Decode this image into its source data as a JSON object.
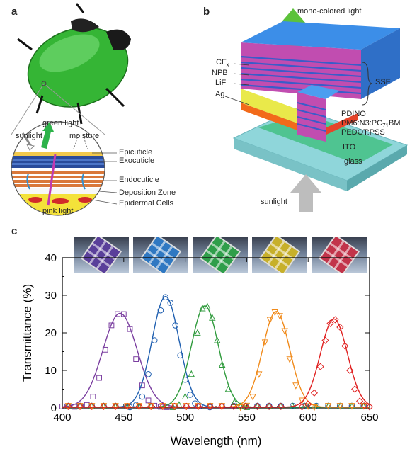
{
  "panels": {
    "a": "a",
    "b": "b",
    "c": "c"
  },
  "panel_a": {
    "inset_labels": {
      "green_light": "green light",
      "sunlight": "sunlight",
      "moisture": "moisture",
      "pink_light": "pink light"
    },
    "layers": [
      "Epicuticle",
      "Exocuticle",
      "Endocuticle",
      "Deposition Zone",
      "Epidermal Cells"
    ]
  },
  "panel_b": {
    "top_label": "mono-colored light",
    "bottom_label": "sunlight",
    "left_labels": {
      "cf": "CF",
      "cf_sub": "x",
      "npb": "NPB",
      "lif": "LiF",
      "ag": "Ag"
    },
    "right_labels": {
      "sse": "SSE",
      "pdino": "PDINO",
      "pm6": "PM6:N3:PC",
      "pm6_sub": "71",
      "pm6_end": "BM",
      "pedot": "PEDOT:PSS",
      "ito": "ITO",
      "glass": "glass"
    }
  },
  "chart_data": {
    "type": "line",
    "xlabel": "Wavelength (nm)",
    "ylabel": "Transmittance (%)",
    "xlim": [
      400,
      650
    ],
    "ylim": [
      0,
      40
    ],
    "xticks": [
      400,
      450,
      500,
      550,
      600,
      650
    ],
    "yticks": [
      0,
      10,
      20,
      30,
      40
    ],
    "series": [
      {
        "color": "#7b3fa0",
        "marker": "square",
        "peak_x": 447,
        "peak_y": 25,
        "sigma": 14,
        "points": [
          [
            400,
            0.4
          ],
          [
            405,
            0.4
          ],
          [
            410,
            0.3
          ],
          [
            415,
            0.4
          ],
          [
            420,
            0.8
          ],
          [
            425,
            3
          ],
          [
            430,
            8
          ],
          [
            435,
            15.5
          ],
          [
            440,
            22
          ],
          [
            445,
            25
          ],
          [
            450,
            25
          ],
          [
            455,
            21
          ],
          [
            460,
            13
          ],
          [
            465,
            6
          ],
          [
            470,
            2
          ],
          [
            475,
            0.6
          ],
          [
            480,
            0.3
          ],
          [
            485,
            0.2
          ]
        ]
      },
      {
        "color": "#1f5fb0",
        "marker": "circle",
        "peak_x": 484,
        "peak_y": 29.5,
        "sigma": 11,
        "points": [
          [
            455,
            0.2
          ],
          [
            460,
            0.8
          ],
          [
            465,
            3
          ],
          [
            470,
            9
          ],
          [
            475,
            18
          ],
          [
            480,
            26
          ],
          [
            484,
            29.5
          ],
          [
            488,
            28
          ],
          [
            492,
            22
          ],
          [
            496,
            14
          ],
          [
            500,
            7.5
          ],
          [
            504,
            3.5
          ],
          [
            508,
            1.2
          ],
          [
            512,
            0.4
          ],
          [
            520,
            0.2
          ]
        ]
      },
      {
        "color": "#2f9a3c",
        "marker": "triangle-up",
        "peak_x": 516,
        "peak_y": 27,
        "sigma": 11,
        "points": [
          [
            490,
            0.2
          ],
          [
            495,
            0.8
          ],
          [
            500,
            3
          ],
          [
            505,
            9
          ],
          [
            510,
            20
          ],
          [
            514,
            26.5
          ],
          [
            518,
            27
          ],
          [
            522,
            24
          ],
          [
            526,
            18
          ],
          [
            530,
            11.5
          ],
          [
            535,
            5
          ],
          [
            540,
            1.5
          ],
          [
            545,
            0.4
          ],
          [
            550,
            0.2
          ]
        ]
      },
      {
        "color": "#f08a1a",
        "marker": "triangle-down",
        "peak_x": 574,
        "peak_y": 25.5,
        "sigma": 11,
        "points": [
          [
            545,
            0.2
          ],
          [
            550,
            0.6
          ],
          [
            555,
            3
          ],
          [
            560,
            9
          ],
          [
            565,
            17.5
          ],
          [
            569,
            23.5
          ],
          [
            573,
            25.5
          ],
          [
            577,
            24.5
          ],
          [
            581,
            20.5
          ],
          [
            585,
            13
          ],
          [
            590,
            6
          ],
          [
            595,
            2
          ],
          [
            600,
            0.5
          ],
          [
            605,
            0.2
          ]
        ]
      },
      {
        "color": "#e02020",
        "marker": "diamond",
        "peak_x": 621,
        "peak_y": 23.5,
        "sigma": 11,
        "points": [
          [
            595,
            0.3
          ],
          [
            600,
            1
          ],
          [
            605,
            4
          ],
          [
            610,
            11
          ],
          [
            614,
            18
          ],
          [
            618,
            22.5
          ],
          [
            622,
            23.5
          ],
          [
            626,
            21.5
          ],
          [
            630,
            16.5
          ],
          [
            634,
            10
          ],
          [
            638,
            5
          ],
          [
            642,
            1.8
          ],
          [
            646,
            0.6
          ],
          [
            650,
            0.3
          ]
        ]
      }
    ],
    "baseline_markers": {
      "count": 26
    }
  },
  "photo_tints": [
    "#5a3f9a",
    "#2f78c2",
    "#2f9e4a",
    "#c7b02a",
    "#c2344a"
  ]
}
